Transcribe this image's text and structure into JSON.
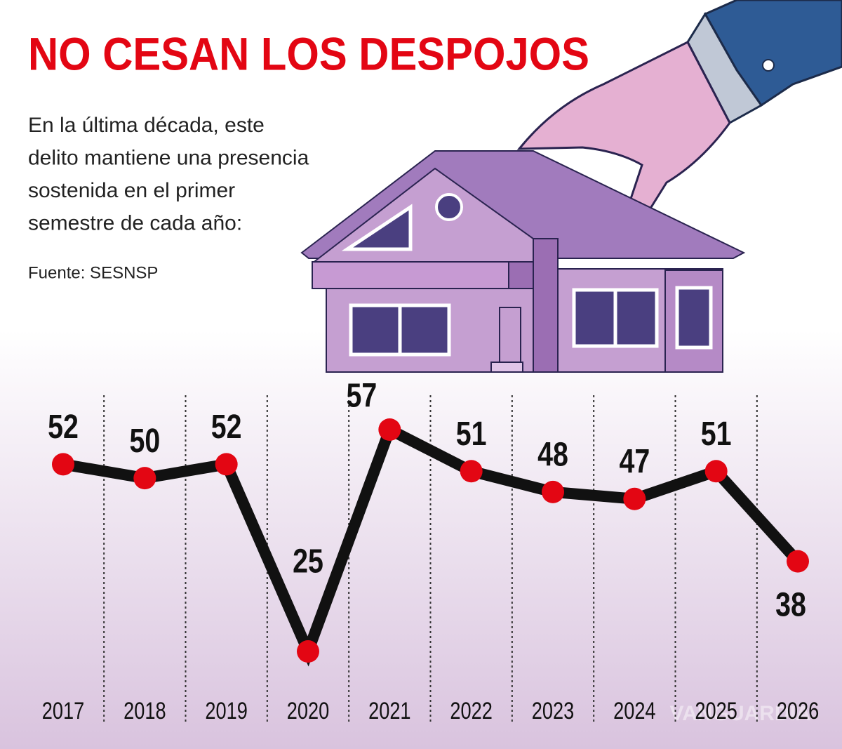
{
  "chart_data": {
    "type": "line",
    "title": "NO CESAN LOS DESPOJOS",
    "subtitle": [
      "En la última década, este",
      "delito mantiene una presencia",
      "sostenida en el primer",
      "semestre de cada año:"
    ],
    "source": "Fuente: SESNSP",
    "watermark": "VANGUARDIA",
    "categories": [
      "2017",
      "2018",
      "2019",
      "2020",
      "2021",
      "2022",
      "2023",
      "2024",
      "2025",
      "2026"
    ],
    "values": [
      52,
      50,
      52,
      25,
      57,
      51,
      48,
      47,
      51,
      38
    ],
    "color": "#111111",
    "marker_color": "#e30613"
  }
}
